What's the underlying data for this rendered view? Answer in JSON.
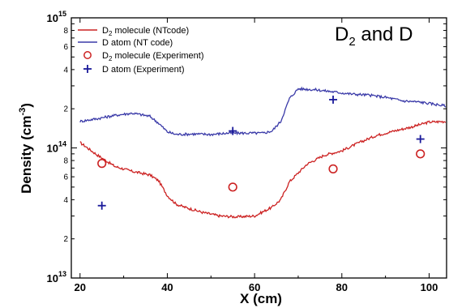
{
  "chart_data": {
    "type": "line",
    "title": "D2 and D",
    "title_main": "D",
    "title_sub": "2",
    "title_tail": " and D",
    "xlabel": "X  (cm)",
    "ylabel_main": "Density  (cm",
    "ylabel_sup": "-3",
    "ylabel_tail": ")",
    "xlim": [
      18,
      104
    ],
    "ylim": [
      10000000000000.0,
      1000000000000000.0
    ],
    "yscale": "log",
    "x_ticks": [
      20,
      40,
      60,
      80,
      100
    ],
    "x_tick_labels": [
      "20",
      "40",
      "60",
      "80",
      "100"
    ],
    "y_decade_ticks": [
      {
        "value": 10000000000000.0,
        "base": "10",
        "exp": "13"
      },
      {
        "value": 100000000000000.0,
        "base": "10",
        "exp": "14"
      },
      {
        "value": 1000000000000000.0,
        "base": "10",
        "exp": "15"
      }
    ],
    "y_minor_labels": [
      {
        "value": 20000000000000.0,
        "label": "2"
      },
      {
        "value": 40000000000000.0,
        "label": "4"
      },
      {
        "value": 60000000000000.0,
        "label": "6"
      },
      {
        "value": 80000000000000.0,
        "label": "8"
      },
      {
        "value": 200000000000000.0,
        "label": "2"
      },
      {
        "value": 400000000000000.0,
        "label": "4"
      },
      {
        "value": 600000000000000.0,
        "label": "6"
      },
      {
        "value": 800000000000000.0,
        "label": "8"
      }
    ],
    "legend_position": "top-left",
    "series": [
      {
        "name": "D2 molecule (NTcode)",
        "legend_main": "D",
        "legend_sub": "2",
        "legend_tail": " molecule (NTcode)",
        "kind": "line",
        "color": "#cc2222",
        "x": [
          20,
          24,
          28,
          32,
          36,
          38,
          40,
          42,
          44,
          48,
          52,
          56,
          60,
          64,
          66,
          68,
          72,
          76,
          80,
          84,
          88,
          92,
          96,
          100,
          104
        ],
        "y": [
          110000000000000.0,
          88000000000000.0,
          72000000000000.0,
          66000000000000.0,
          62000000000000.0,
          56000000000000.0,
          43000000000000.0,
          37000000000000.0,
          35000000000000.0,
          32000000000000.0,
          30000000000000.0,
          29500000000000.0,
          30000000000000.0,
          35000000000000.0,
          40000000000000.0,
          55000000000000.0,
          75000000000000.0,
          88000000000000.0,
          95000000000000.0,
          110000000000000.0,
          125000000000000.0,
          135000000000000.0,
          145000000000000.0,
          158000000000000.0,
          160000000000000.0
        ]
      },
      {
        "name": "D atom (NT code)",
        "legend_main": "D   atom",
        "legend_sub": "",
        "legend_tail": "     (NT code)",
        "kind": "line",
        "color": "#3a3aa8",
        "x": [
          20,
          24,
          28,
          32,
          36,
          38,
          40,
          42,
          46,
          50,
          54,
          58,
          62,
          64,
          66,
          68,
          70,
          74,
          78,
          82,
          86,
          90,
          94,
          98,
          104
        ],
        "y": [
          160000000000000.0,
          168000000000000.0,
          178000000000000.0,
          185000000000000.0,
          175000000000000.0,
          155000000000000.0,
          133000000000000.0,
          127000000000000.0,
          128000000000000.0,
          127000000000000.0,
          130000000000000.0,
          130000000000000.0,
          130000000000000.0,
          135000000000000.0,
          160000000000000.0,
          240000000000000.0,
          285000000000000.0,
          280000000000000.0,
          270000000000000.0,
          260000000000000.0,
          255000000000000.0,
          245000000000000.0,
          230000000000000.0,
          225000000000000.0,
          210000000000000.0
        ]
      },
      {
        "name": "D2 molecule (Experiment)",
        "legend_main": "D",
        "legend_sub": "2",
        "legend_tail": " molecule (Experiment)",
        "kind": "scatter",
        "marker": "circle",
        "color": "#cc2222",
        "x": [
          25,
          55,
          78,
          98
        ],
        "y": [
          76000000000000.0,
          50000000000000.0,
          69000000000000.0,
          90000000000000.0
        ]
      },
      {
        "name": "D atom (Experiment)",
        "legend_main": "D   atom",
        "legend_sub": "",
        "legend_tail": "       (Experiment)",
        "kind": "scatter",
        "marker": "plus",
        "color": "#1a1a9a",
        "x": [
          25,
          55,
          78,
          98
        ],
        "y": [
          36000000000000.0,
          135000000000000.0,
          235000000000000.0,
          117000000000000.0
        ]
      }
    ]
  }
}
